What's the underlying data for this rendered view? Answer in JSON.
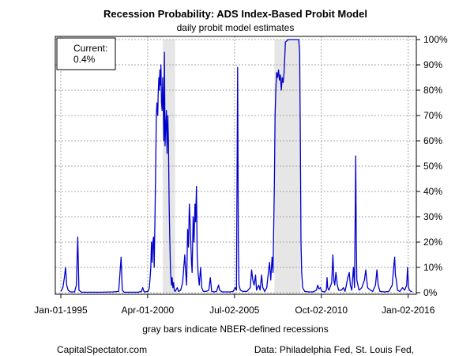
{
  "chart_data": {
    "type": "line",
    "title": "Recession Probability: ADS Index-Based Probit Model",
    "subtitle": "daily probit model estimates",
    "xlabel": "gray bars indicate NBER-defined recessions",
    "ylabel": "",
    "x_ticks": [
      "Jan-01-1995",
      "Apr-01-2000",
      "Jul-02-2005",
      "Oct-02-2010",
      "Jan-02-2016"
    ],
    "x_range": [
      "1994-09-01",
      "2016-06-30"
    ],
    "y_ticks": [
      "0%",
      "10%",
      "20%",
      "30%",
      "40%",
      "50%",
      "60%",
      "70%",
      "80%",
      "90%",
      "100%"
    ],
    "ylim": [
      0,
      100
    ],
    "grid": true,
    "legend_box": {
      "label": "Current:",
      "value": "0.4%",
      "placement": "top-left"
    },
    "recessions": [
      {
        "start": "2001-03-01",
        "end": "2001-11-30"
      },
      {
        "start": "2007-12-01",
        "end": "2009-06-30"
      }
    ],
    "series": [
      {
        "color": "#0000cc",
        "points": [
          [
            "1995-01-01",
            0.5
          ],
          [
            "1995-02-15",
            2
          ],
          [
            "1995-03-20",
            6
          ],
          [
            "1995-04-15",
            10
          ],
          [
            "1995-05-10",
            3
          ],
          [
            "1995-06-10",
            1
          ],
          [
            "1995-08-01",
            0.3
          ],
          [
            "1995-11-01",
            0.3
          ],
          [
            "1995-12-10",
            3
          ],
          [
            "1996-01-10",
            22
          ],
          [
            "1996-02-05",
            1
          ],
          [
            "1996-04-01",
            0.2
          ],
          [
            "1997-06-01",
            0.2
          ],
          [
            "1998-03-01",
            0.3
          ],
          [
            "1998-07-01",
            0.5
          ],
          [
            "1998-08-25",
            14
          ],
          [
            "1998-09-20",
            1
          ],
          [
            "1998-11-01",
            0.2
          ],
          [
            "1999-09-01",
            0.2
          ],
          [
            "1999-11-15",
            0.5
          ],
          [
            "1999-12-15",
            2
          ],
          [
            "2000-01-10",
            0.5
          ],
          [
            "2000-02-01",
            0.3
          ],
          [
            "2000-04-10",
            0.5
          ],
          [
            "2000-05-10",
            2
          ],
          [
            "2000-06-10",
            10
          ],
          [
            "2000-06-25",
            20
          ],
          [
            "2000-07-10",
            12
          ],
          [
            "2000-07-25",
            20
          ],
          [
            "2000-08-10",
            22
          ],
          [
            "2000-08-25",
            10
          ],
          [
            "2000-09-10",
            30
          ],
          [
            "2000-09-25",
            48
          ],
          [
            "2000-10-10",
            70
          ],
          [
            "2000-10-25",
            75
          ],
          [
            "2000-11-10",
            70
          ],
          [
            "2000-11-20",
            78
          ],
          [
            "2000-12-05",
            85
          ],
          [
            "2000-12-15",
            80
          ],
          [
            "2000-12-28",
            88
          ],
          [
            "2001-01-10",
            82
          ],
          [
            "2001-01-20",
            90
          ],
          [
            "2001-02-01",
            75
          ],
          [
            "2001-02-15",
            72
          ],
          [
            "2001-03-01",
            85
          ],
          [
            "2001-03-12",
            75
          ],
          [
            "2001-03-25",
            60
          ],
          [
            "2001-04-08",
            95
          ],
          [
            "2001-04-20",
            58
          ],
          [
            "2001-05-05",
            65
          ],
          [
            "2001-05-20",
            72
          ],
          [
            "2001-06-05",
            55
          ],
          [
            "2001-06-20",
            70
          ],
          [
            "2001-07-05",
            60
          ],
          [
            "2001-07-20",
            35
          ],
          [
            "2001-08-05",
            20
          ],
          [
            "2001-08-20",
            8
          ],
          [
            "2001-09-10",
            3
          ],
          [
            "2001-09-25",
            6
          ],
          [
            "2001-10-10",
            2
          ],
          [
            "2001-10-25",
            4
          ],
          [
            "2001-11-10",
            1
          ],
          [
            "2001-12-01",
            0.5
          ],
          [
            "2002-01-15",
            2
          ],
          [
            "2002-02-15",
            0.5
          ],
          [
            "2002-04-01",
            1
          ],
          [
            "2002-05-15",
            4
          ],
          [
            "2002-07-01",
            15
          ],
          [
            "2002-07-15",
            10
          ],
          [
            "2002-08-10",
            3
          ],
          [
            "2002-09-01",
            25
          ],
          [
            "2002-09-20",
            18
          ],
          [
            "2002-10-10",
            35
          ],
          [
            "2002-10-25",
            28
          ],
          [
            "2002-11-10",
            20
          ],
          [
            "2002-11-25",
            12
          ],
          [
            "2002-12-10",
            8
          ],
          [
            "2003-01-01",
            30
          ],
          [
            "2003-01-20",
            20
          ],
          [
            "2003-02-10",
            35
          ],
          [
            "2003-02-25",
            28
          ],
          [
            "2003-03-15",
            42
          ],
          [
            "2003-04-01",
            15
          ],
          [
            "2003-04-20",
            8
          ],
          [
            "2003-05-15",
            3
          ],
          [
            "2003-06-15",
            10
          ],
          [
            "2003-07-10",
            2
          ],
          [
            "2003-08-15",
            0.5
          ],
          [
            "2003-10-15",
            0.5
          ],
          [
            "2003-12-15",
            1
          ],
          [
            "2004-01-15",
            6
          ],
          [
            "2004-02-15",
            0.5
          ],
          [
            "2004-04-01",
            0.3
          ],
          [
            "2004-06-01",
            0.5
          ],
          [
            "2004-07-15",
            3
          ],
          [
            "2004-08-10",
            1
          ],
          [
            "2004-10-01",
            0.3
          ],
          [
            "2005-01-01",
            0.3
          ],
          [
            "2005-04-01",
            0.3
          ],
          [
            "2005-06-01",
            0.5
          ],
          [
            "2005-07-20",
            2
          ],
          [
            "2005-08-15",
            1
          ],
          [
            "2005-09-10",
            89
          ],
          [
            "2005-09-25",
            20
          ],
          [
            "2005-10-10",
            3
          ],
          [
            "2005-11-10",
            1
          ],
          [
            "2006-01-01",
            0.5
          ],
          [
            "2006-04-01",
            0.5
          ],
          [
            "2006-06-15",
            2
          ],
          [
            "2006-07-15",
            9
          ],
          [
            "2006-08-10",
            5
          ],
          [
            "2006-09-10",
            3
          ],
          [
            "2006-10-10",
            7
          ],
          [
            "2006-11-01",
            1
          ],
          [
            "2006-12-20",
            3
          ],
          [
            "2007-01-20",
            1
          ],
          [
            "2007-02-20",
            7
          ],
          [
            "2007-03-20",
            2
          ],
          [
            "2007-05-01",
            0.5
          ],
          [
            "2007-06-15",
            2
          ],
          [
            "2007-07-20",
            8
          ],
          [
            "2007-08-15",
            12
          ],
          [
            "2007-09-10",
            5
          ],
          [
            "2007-10-10",
            14
          ],
          [
            "2007-11-01",
            8
          ],
          [
            "2007-12-01",
            45
          ],
          [
            "2007-12-15",
            70
          ],
          [
            "2008-01-01",
            80
          ],
          [
            "2008-01-20",
            87
          ],
          [
            "2008-02-10",
            85
          ],
          [
            "2008-03-01",
            88
          ],
          [
            "2008-03-20",
            84
          ],
          [
            "2008-04-10",
            86
          ],
          [
            "2008-05-01",
            80
          ],
          [
            "2008-05-20",
            85
          ],
          [
            "2008-06-10",
            83
          ],
          [
            "2008-07-01",
            87
          ],
          [
            "2008-08-01",
            99
          ],
          [
            "2008-09-01",
            99.5
          ],
          [
            "2008-10-01",
            100
          ],
          [
            "2008-12-01",
            100
          ],
          [
            "2009-02-01",
            100
          ],
          [
            "2009-04-01",
            100
          ],
          [
            "2009-05-20",
            100
          ],
          [
            "2009-06-10",
            95
          ],
          [
            "2009-06-25",
            60
          ],
          [
            "2009-07-10",
            20
          ],
          [
            "2009-07-25",
            8
          ],
          [
            "2009-08-15",
            2
          ],
          [
            "2009-10-01",
            0.5
          ],
          [
            "2010-01-01",
            0.3
          ],
          [
            "2010-04-01",
            0.3
          ],
          [
            "2010-06-15",
            1
          ],
          [
            "2010-07-15",
            3
          ],
          [
            "2010-08-10",
            1.5
          ],
          [
            "2010-09-10",
            2
          ],
          [
            "2010-10-15",
            0.5
          ],
          [
            "2010-12-15",
            0.3
          ],
          [
            "2011-01-20",
            1
          ],
          [
            "2011-02-05",
            6
          ],
          [
            "2011-02-20",
            2
          ],
          [
            "2011-03-20",
            1
          ],
          [
            "2011-05-20",
            4
          ],
          [
            "2011-06-15",
            15
          ],
          [
            "2011-07-05",
            5
          ],
          [
            "2011-07-25",
            3
          ],
          [
            "2011-08-20",
            8
          ],
          [
            "2011-09-20",
            3
          ],
          [
            "2011-10-20",
            1
          ],
          [
            "2011-12-20",
            1
          ],
          [
            "2012-02-01",
            2
          ],
          [
            "2012-03-10",
            0.5
          ],
          [
            "2012-05-10",
            6
          ],
          [
            "2012-06-10",
            8
          ],
          [
            "2012-07-05",
            3
          ],
          [
            "2012-08-05",
            1
          ],
          [
            "2012-09-10",
            10
          ],
          [
            "2012-10-05",
            2
          ],
          [
            "2012-10-30",
            54
          ],
          [
            "2012-11-12",
            20
          ],
          [
            "2012-11-25",
            5
          ],
          [
            "2013-01-10",
            1
          ],
          [
            "2013-03-15",
            2
          ],
          [
            "2013-05-10",
            5
          ],
          [
            "2013-06-10",
            9
          ],
          [
            "2013-06-25",
            6
          ],
          [
            "2013-07-20",
            2
          ],
          [
            "2013-09-20",
            1
          ],
          [
            "2013-11-10",
            0.5
          ],
          [
            "2014-01-10",
            3
          ],
          [
            "2014-02-10",
            9
          ],
          [
            "2014-03-10",
            3
          ],
          [
            "2014-04-20",
            0.5
          ],
          [
            "2014-08-01",
            0.3
          ],
          [
            "2014-11-01",
            0.5
          ],
          [
            "2015-01-15",
            3
          ],
          [
            "2015-02-15",
            10
          ],
          [
            "2015-03-10",
            14
          ],
          [
            "2015-03-25",
            7
          ],
          [
            "2015-04-15",
            5
          ],
          [
            "2015-05-10",
            1
          ],
          [
            "2015-07-01",
            0.5
          ],
          [
            "2015-09-01",
            2
          ],
          [
            "2015-10-15",
            1
          ],
          [
            "2015-12-01",
            3
          ],
          [
            "2015-12-20",
            10
          ],
          [
            "2016-01-10",
            2
          ],
          [
            "2016-02-01",
            1
          ],
          [
            "2016-03-01",
            0.5
          ],
          [
            "2016-04-01",
            0.4
          ]
        ]
      }
    ]
  },
  "footer": {
    "left": "CapitalSpectator.com",
    "right": "Data: Philadelphia Fed, St. Louis Fed,"
  }
}
